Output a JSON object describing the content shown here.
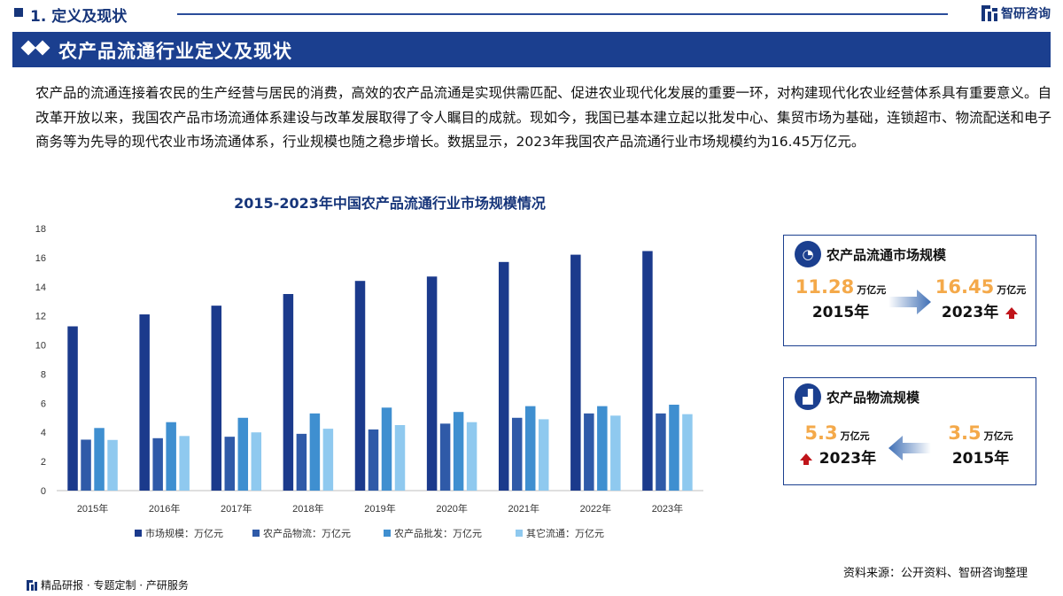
{
  "header": {
    "section_title": "1. 定义及现状",
    "brand": "智研咨询",
    "banner_title": "农产品流通行业定义及现状"
  },
  "paragraph": "农产品的流通连接着农民的生产经营与居民的消费，高效的农产品流通是实现供需匹配、促进农业现代化发展的重要一环，对构建现代化农业经营体系具有重要意义。自改革开放以来，我国农产品市场流通体系建设与改革发展取得了令人瞩目的成就。现如今，我国已基本建立起以批发中心、集贸市场为基础，连锁超市、物流配送和电子商务等为先导的现代农业市场流通体系，行业规模也随之稳步增长。数据显示，2023年我国农产品流通行业市场规模约为16.45万亿元。",
  "chart_data": {
    "type": "bar",
    "title": "2015-2023年中国农产品流通行业市场规模情况",
    "categories": [
      "2015年",
      "2016年",
      "2017年",
      "2018年",
      "2019年",
      "2020年",
      "2021年",
      "2022年",
      "2023年"
    ],
    "series": [
      {
        "name": "市场规模：万亿元",
        "color": "#1b3a8c",
        "values": [
          11.28,
          12.1,
          12.7,
          13.5,
          14.4,
          14.7,
          15.7,
          16.2,
          16.45
        ]
      },
      {
        "name": "农产品物流：万亿元",
        "color": "#2f5aa8",
        "values": [
          3.5,
          3.6,
          3.7,
          3.9,
          4.2,
          4.6,
          5.0,
          5.3,
          5.3
        ]
      },
      {
        "name": "农产品批发：万亿元",
        "color": "#3f8fd0",
        "values": [
          4.3,
          4.7,
          5.0,
          5.3,
          5.7,
          5.4,
          5.8,
          5.8,
          5.9
        ]
      },
      {
        "name": "其它流通：万亿元",
        "color": "#8fc9ef",
        "values": [
          3.48,
          3.75,
          4.0,
          4.25,
          4.5,
          4.7,
          4.9,
          5.15,
          5.25
        ]
      }
    ],
    "yticks": [
      "0",
      "2",
      "4",
      "6",
      "8",
      "10",
      "12",
      "14",
      "16",
      "18"
    ],
    "ylim": [
      0,
      18
    ],
    "legend_position": "bottom",
    "grid": false
  },
  "card_market": {
    "title": "农产品流通市场规模",
    "icon": "gauge-icon",
    "from_value": "11.28",
    "from_unit": "万亿元",
    "from_year": "2015年",
    "to_value": "16.45",
    "to_unit": "万亿元",
    "to_year": "2023年"
  },
  "card_logistics": {
    "title": "农产品物流规模",
    "icon": "bar-chart-icon",
    "left_value": "5.3",
    "left_unit": "万亿元",
    "left_year": "2023年",
    "right_value": "3.5",
    "right_unit": "万亿元",
    "right_year": "2015年"
  },
  "footer": {
    "left": "精品研报 · 专题定制 · 产研服务",
    "source": "资料来源：公开资料、智研咨询整理"
  },
  "colors": {
    "primary": "#1b3f8f",
    "accent_orange": "#f4a94a",
    "up_red": "#c0141a"
  }
}
